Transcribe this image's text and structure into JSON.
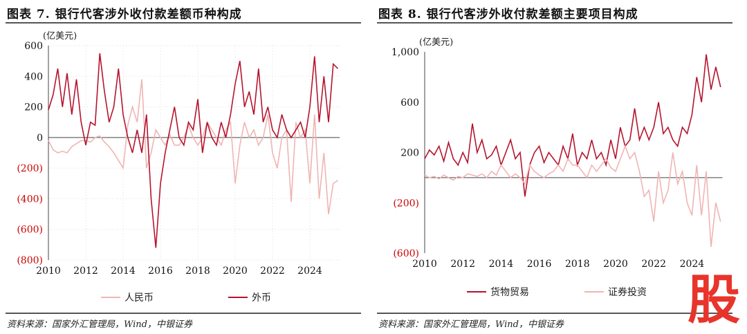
{
  "chart_data": [
    {
      "type": "line",
      "title": "图表 7. 银行代客涉外收付款差额币种构成",
      "unit_label": "(亿美元)",
      "ylim": [
        -800,
        600
      ],
      "yticks": [
        600,
        400,
        200,
        0,
        -200,
        -400,
        -600,
        -800
      ],
      "ytick_labels": [
        "600",
        "400",
        "200",
        "0",
        "(200)",
        "(400)",
        "(600)",
        "(800)"
      ],
      "xticks": [
        "2010",
        "2012",
        "2014",
        "2016",
        "2018",
        "2020",
        "2022",
        "2024"
      ],
      "x_start": 2010,
      "x_step": 0.25,
      "grid": true,
      "legend_position": "bottom",
      "series": [
        {
          "name": "人民币",
          "color": "#f0b4b4",
          "values": [
            -20,
            -80,
            -100,
            -90,
            -100,
            -60,
            -40,
            -20,
            -20,
            -30,
            0,
            10,
            -30,
            -60,
            -100,
            -150,
            -200,
            80,
            200,
            100,
            380,
            -200,
            -100,
            50,
            0,
            -50,
            20,
            -50,
            -50,
            0,
            80,
            0,
            -50,
            0,
            100,
            50,
            0,
            -50,
            50,
            100,
            -300,
            -50,
            100,
            0,
            50,
            -50,
            0,
            150,
            -100,
            -200,
            0,
            50,
            -420,
            100,
            0,
            50,
            -300,
            150,
            -400,
            -100,
            -500,
            -300,
            -280
          ]
        },
        {
          "name": "外币",
          "color": "#b5132d",
          "values": [
            180,
            280,
            450,
            200,
            420,
            150,
            380,
            100,
            -50,
            100,
            80,
            550,
            300,
            100,
            200,
            450,
            150,
            0,
            -100,
            50,
            -100,
            150,
            -400,
            -720,
            -300,
            -100,
            50,
            200,
            0,
            -50,
            100,
            50,
            250,
            -100,
            100,
            0,
            -50,
            100,
            0,
            150,
            350,
            500,
            200,
            300,
            150,
            450,
            100,
            200,
            50,
            0,
            150,
            50,
            0,
            50,
            100,
            0,
            200,
            530,
            100,
            400,
            100,
            480,
            450
          ]
        }
      ],
      "source": "资料来源：国家外汇管理局，Wind，中银证券"
    },
    {
      "type": "line",
      "title": "图表 8. 银行代客涉外收付款差额主要项目构成",
      "unit_label": "(亿美元)",
      "ylim": [
        -600,
        1000
      ],
      "yticks": [
        1000,
        600,
        200,
        -200,
        -600
      ],
      "ytick_labels": [
        "1,000",
        "600",
        "200",
        "(200)",
        "(600)"
      ],
      "xticks": [
        "2010",
        "2012",
        "2014",
        "2016",
        "2018",
        "2020",
        "2022",
        "2024"
      ],
      "x_start": 2010,
      "x_step": 0.25,
      "grid": false,
      "legend_position": "bottom",
      "series": [
        {
          "name": "货物贸易",
          "color": "#b5132d",
          "values": [
            150,
            220,
            180,
            250,
            130,
            280,
            150,
            100,
            200,
            120,
            430,
            200,
            300,
            150,
            180,
            250,
            100,
            200,
            300,
            150,
            200,
            -150,
            100,
            200,
            250,
            120,
            200,
            150,
            100,
            250,
            150,
            350,
            100,
            200,
            150,
            300,
            150,
            200,
            100,
            300,
            150,
            400,
            250,
            300,
            550,
            300,
            400,
            300,
            400,
            600,
            350,
            400,
            300,
            250,
            400,
            350,
            500,
            800,
            600,
            980,
            700,
            880,
            720
          ]
        },
        {
          "name": "证券投资",
          "color": "#f0b4b4",
          "values": [
            20,
            0,
            10,
            -10,
            20,
            0,
            -20,
            10,
            0,
            30,
            20,
            10,
            30,
            0,
            50,
            20,
            100,
            50,
            0,
            30,
            0,
            -50,
            100,
            50,
            20,
            0,
            30,
            50,
            100,
            50,
            150,
            100,
            100,
            50,
            0,
            100,
            50,
            100,
            150,
            80,
            50,
            150,
            250,
            150,
            200,
            50,
            -150,
            -100,
            -350,
            50,
            -200,
            -100,
            200,
            -50,
            50,
            -200,
            -300,
            100,
            -300,
            50,
            -550,
            -200,
            -350
          ]
        }
      ],
      "source": "资料来源：国家外汇管理局，Wind，中银证券"
    }
  ],
  "watermark": "股"
}
